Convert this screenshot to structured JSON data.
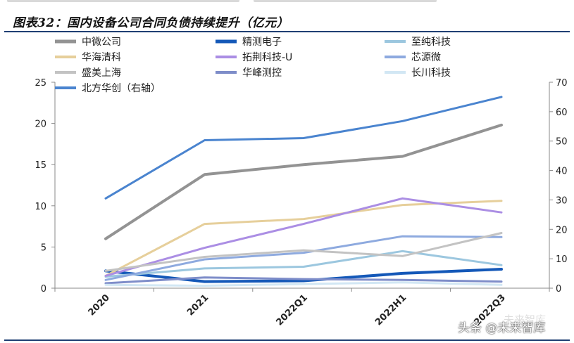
{
  "figure": {
    "title": "图表32：国内设备公司合同负债持续提升（亿元）"
  },
  "watermark": {
    "text": "头条 @未来智库",
    "logo_text": "未来智库"
  },
  "chart_data": {
    "type": "line",
    "title": "图表32：国内设备公司合同负债持续提升（亿元）",
    "categories": [
      "2020",
      "2021",
      "2022Q1",
      "2022H1",
      "2022Q3"
    ],
    "y_left": {
      "ylim": [
        0,
        25
      ],
      "ticks": [
        0,
        5,
        10,
        15,
        20,
        25
      ]
    },
    "y_right": {
      "ylim": [
        0,
        70
      ],
      "ticks": [
        0,
        10,
        20,
        30,
        40,
        50,
        60,
        70
      ]
    },
    "legend_position": "top",
    "series": [
      {
        "name": "中微公司",
        "axis": "left",
        "color": "#939393",
        "values": [
          6.0,
          13.8,
          15.0,
          16.0,
          19.8
        ]
      },
      {
        "name": "精测电子",
        "axis": "left",
        "color": "#1458b8",
        "values": [
          2.1,
          0.8,
          0.9,
          1.8,
          2.3
        ]
      },
      {
        "name": "至纯科技",
        "axis": "left",
        "color": "#9cc7df",
        "values": [
          1.4,
          2.4,
          2.6,
          4.5,
          2.8
        ]
      },
      {
        "name": "华海清科",
        "axis": "left",
        "color": "#e6cf9b",
        "values": [
          1.5,
          7.8,
          8.4,
          10.1,
          10.6
        ]
      },
      {
        "name": "拓荆科技-U",
        "axis": "left",
        "color": "#ab8ee4",
        "values": [
          1.5,
          4.9,
          7.8,
          10.9,
          9.2
        ]
      },
      {
        "name": "芯源微",
        "axis": "left",
        "color": "#8eaadf",
        "values": [
          1.0,
          3.5,
          4.3,
          6.3,
          6.2
        ]
      },
      {
        "name": "盛美上海",
        "axis": "left",
        "color": "#c3c3c3",
        "values": [
          2.1,
          3.8,
          4.6,
          3.9,
          6.7
        ]
      },
      {
        "name": "华峰测控",
        "axis": "left",
        "color": "#7e8dc9",
        "values": [
          0.6,
          1.3,
          1.1,
          1.0,
          0.8
        ]
      },
      {
        "name": "长川科技",
        "axis": "left",
        "color": "#d2e7f4",
        "values": [
          0.4,
          0.3,
          0.5,
          0.7,
          0.4
        ]
      },
      {
        "name": "北方华创（右轴）",
        "axis": "right",
        "color": "#4a84cf",
        "values": [
          30.5,
          50.3,
          51.0,
          56.8,
          65.0
        ]
      }
    ]
  }
}
